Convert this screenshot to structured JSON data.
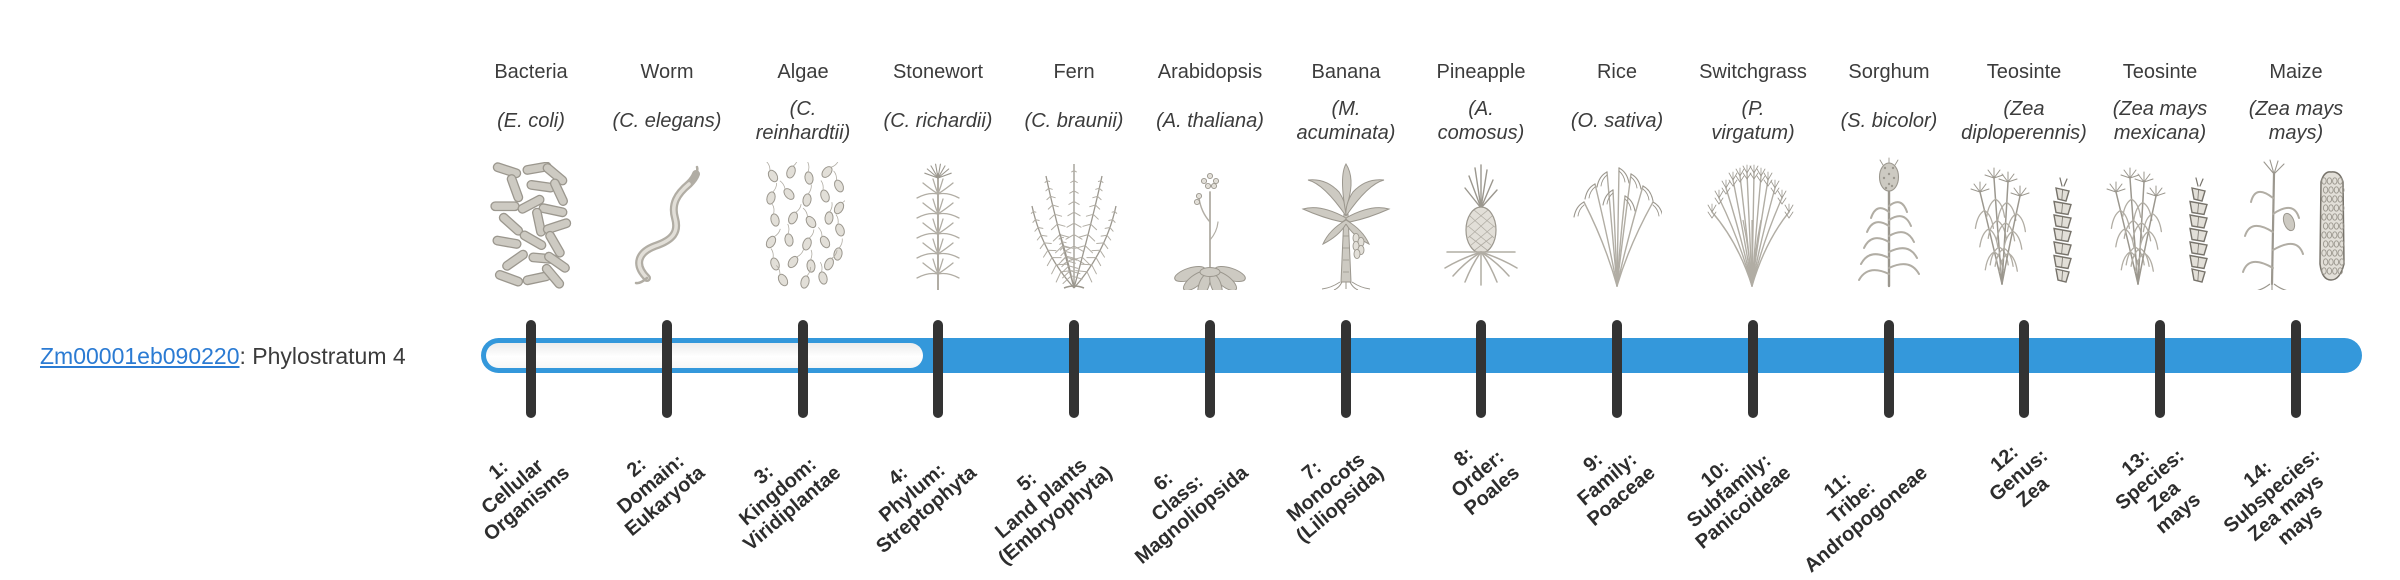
{
  "gene": {
    "id": "Zm00001eb090220",
    "suffix": ": Phylostratum 4",
    "phylostratum": 4
  },
  "colors": {
    "bar_blue": "#3498db",
    "tick": "#333333",
    "link": "#2b7bd3"
  },
  "chart_data": {
    "type": "bar",
    "title": "Zm00001eb090220: Phylostratum 4",
    "x": [
      1,
      2,
      3,
      4,
      5,
      6,
      7,
      8,
      9,
      10,
      11,
      12,
      13,
      14
    ],
    "bar_fill_range": [
      4,
      14
    ],
    "bar_outline_range": [
      1,
      3
    ],
    "categories": [
      "1: Cellular Organisms",
      "2: Domain: Eukaryota",
      "3: Kingdom: Viridiplantae",
      "4: Phylum: Streptophyta",
      "5: Land plants (Embryophyta)",
      "6: Class: Magnoliopsida",
      "7: Monocots (Liliopsida)",
      "8: Order: Poales",
      "9: Family: Poaceae",
      "10: Subfamily: Panicoideae",
      "11: Tribe: Andropogoneae",
      "12: Genus: Zea",
      "13: Species: Zea mays",
      "14: Subspecies: Zea mays mays"
    ],
    "top_axis_labels": [
      "Bacteria (E. coli)",
      "Worm (C. elegans)",
      "Algae (C. reinhardtii)",
      "Stonewort (C. richardii)",
      "Fern (C. braunii)",
      "Arabidopsis (A. thaliana)",
      "Banana (M. acuminata)",
      "Pineapple (A. comosus)",
      "Rice (O. sativa)",
      "Switchgrass (P. virgatum)",
      "Sorghum (S. bicolor)",
      "Teosinte (Zea diploperennis)",
      "Teosinte (Zea mays mexicana)",
      "Maize (Zea mays mays)"
    ],
    "legend_position": "none",
    "grid": false
  },
  "organisms": [
    {
      "name": "Bacteria",
      "scientific": "(E. coli)",
      "icon": "bacteria-illustration"
    },
    {
      "name": "Worm",
      "scientific": "(C. elegans)",
      "icon": "worm-illustration"
    },
    {
      "name": "Algae",
      "scientific": "(C.\nreinhardtii)",
      "icon": "algae-illustration"
    },
    {
      "name": "Stonewort",
      "scientific": "(C. richardii)",
      "icon": "stonewort-illustration"
    },
    {
      "name": "Fern",
      "scientific": "(C. braunii)",
      "icon": "fern-illustration"
    },
    {
      "name": "Arabidopsis",
      "scientific": "(A. thaliana)",
      "icon": "arabidopsis-illustration"
    },
    {
      "name": "Banana",
      "scientific": "(M.\nacuminata)",
      "icon": "banana-illustration"
    },
    {
      "name": "Pineapple",
      "scientific": "(A.\ncomosus)",
      "icon": "pineapple-illustration"
    },
    {
      "name": "Rice",
      "scientific": "(O. sativa)",
      "icon": "rice-illustration"
    },
    {
      "name": "Switchgrass",
      "scientific": "(P.\nvirgatum)",
      "icon": "switchgrass-illustration"
    },
    {
      "name": "Sorghum",
      "scientific": "(S. bicolor)",
      "icon": "sorghum-illustration"
    },
    {
      "name": "Teosinte",
      "scientific": "(Zea\ndiploperennis)",
      "icon": "teosinte-illustration"
    },
    {
      "name": "Teosinte",
      "scientific": "(Zea mays\nmexicana)",
      "icon": "teosinte-illustration"
    },
    {
      "name": "Maize",
      "scientific": "(Zea mays\nmays)",
      "icon": "maize-illustration"
    }
  ],
  "phylostrata": [
    {
      "label": "1:\nCellular\nOrganisms"
    },
    {
      "label": "2:\nDomain:\nEukaryota"
    },
    {
      "label": "3:\nKingdom:\nViridiplantae"
    },
    {
      "label": "4:\nPhylum:\nStreptophyta"
    },
    {
      "label": "5:\nLand plants\n(Embryophyta)"
    },
    {
      "label": "6:\nClass:\nMagnoliopsida"
    },
    {
      "label": "7:\nMonocots\n(Liliopsida)"
    },
    {
      "label": "8:\nOrder:\nPoales"
    },
    {
      "label": "9:\nFamily:\nPoaceae"
    },
    {
      "label": "10:\nSubfamily:\nPanicoideae"
    },
    {
      "label": "11:\nTribe:\nAndropogoneae"
    },
    {
      "label": "12:\nGenus:\nZea"
    },
    {
      "label": "13:\nSpecies:\nZea\nmays"
    },
    {
      "label": "14:\nSubspecies:\nZea mays\nmays"
    }
  ]
}
